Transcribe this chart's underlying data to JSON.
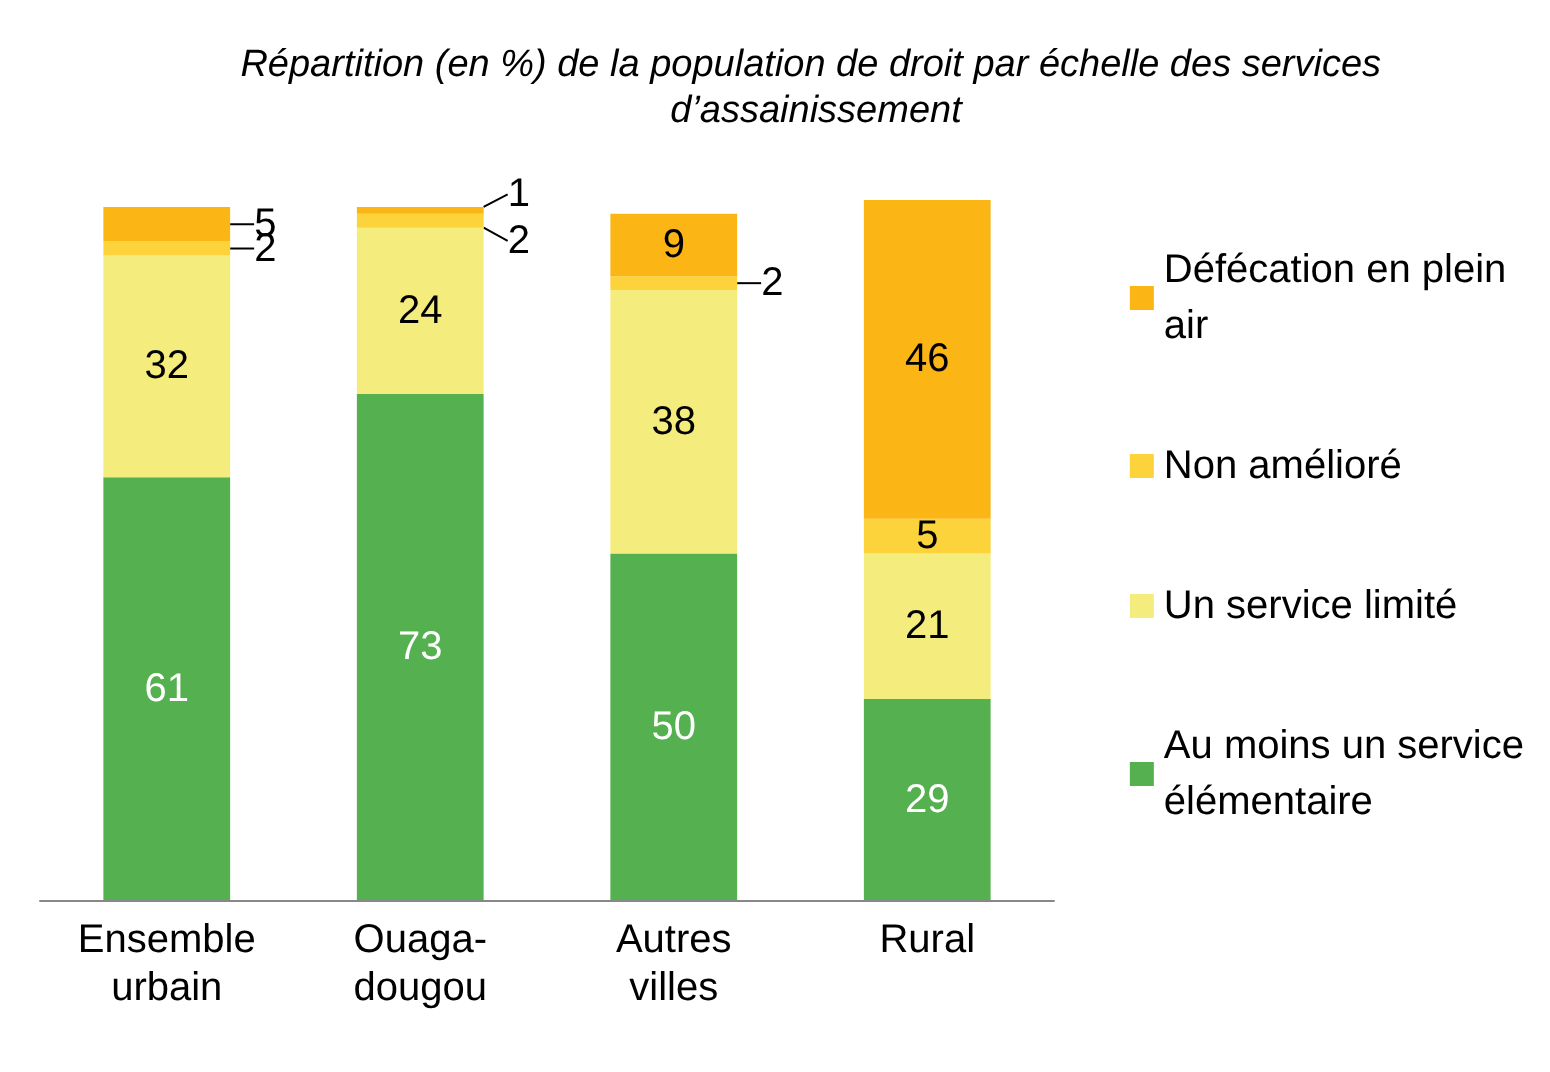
{
  "chart_data": {
    "type": "bar",
    "title": "Répartition (en %) de la population de droit par échelle des services d’assainissement",
    "categories": [
      "Ensemble\nurbain",
      "Ouaga-\ndougou",
      "Autres\nvilles",
      "Rural"
    ],
    "stacked": true,
    "data_labels": true,
    "legend": "right",
    "series": [
      {
        "name": "Au moins un service élémentaire",
        "color": "#55b04f",
        "values": [
          61,
          73,
          50,
          29
        ]
      },
      {
        "name": "Un service limité",
        "color": "#f4ec7c",
        "values": [
          32,
          24,
          38,
          21
        ]
      },
      {
        "name": "Non amélioré",
        "color": "#fdd33b",
        "values": [
          2,
          2,
          2,
          5
        ]
      },
      {
        "name": "Défécation en plein air",
        "color": "#fbb515",
        "values": [
          5,
          1,
          9,
          46
        ]
      }
    ]
  }
}
